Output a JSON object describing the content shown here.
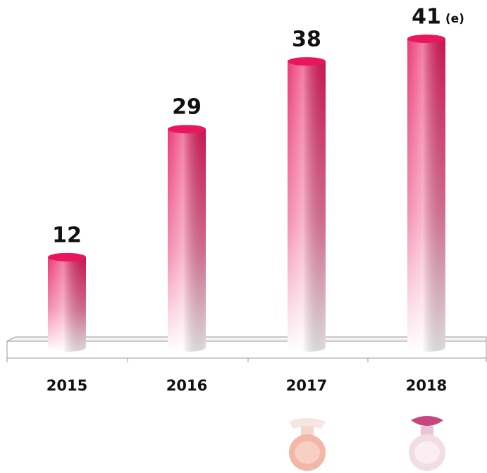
{
  "chart_data": {
    "type": "bar",
    "categories": [
      "2015",
      "2016",
      "2017",
      "2018"
    ],
    "values": [
      12,
      29,
      38,
      41
    ],
    "annotation": "(e)",
    "color": "#e8175d",
    "ylim": [
      0,
      44
    ]
  }
}
